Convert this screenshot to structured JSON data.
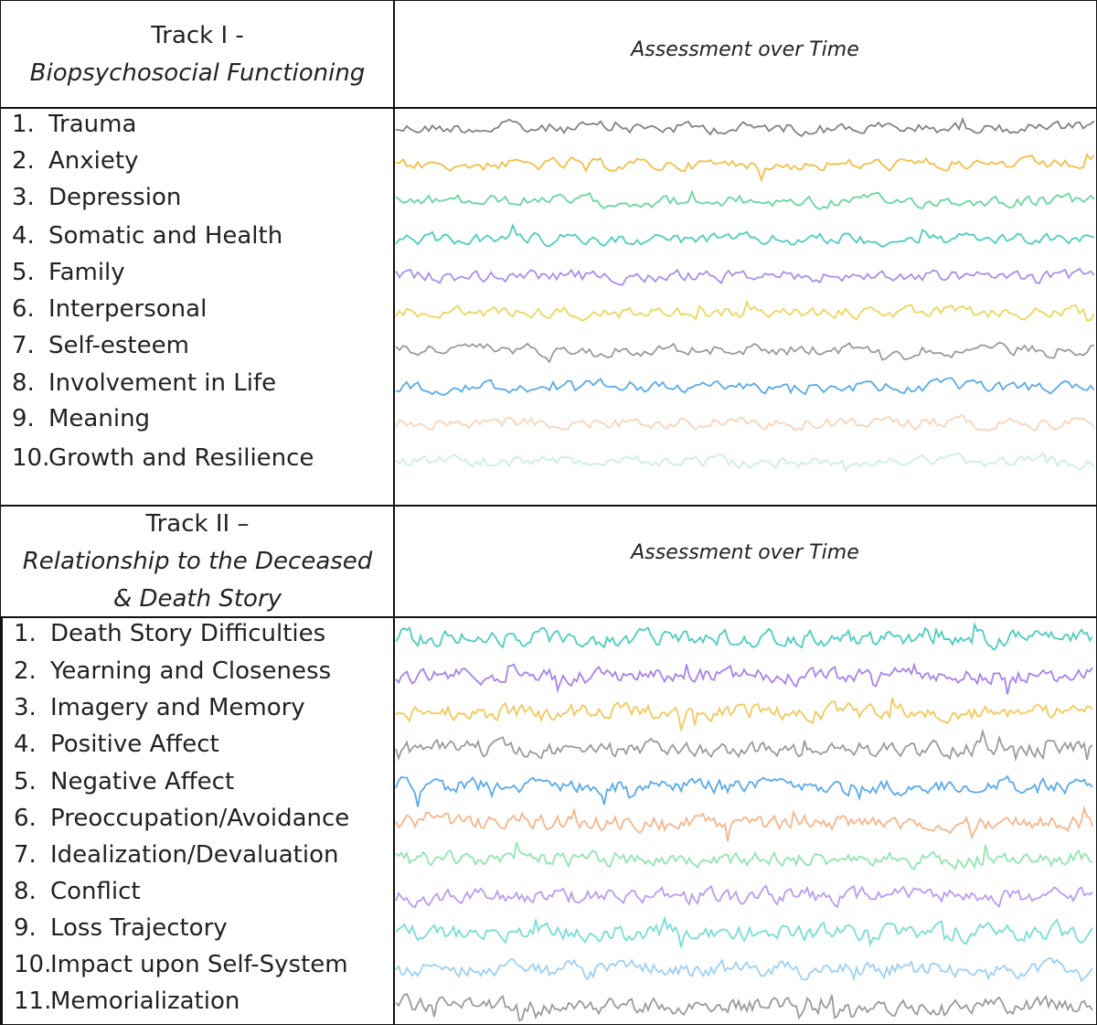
{
  "tracks": [
    {
      "title": "Track I -",
      "subtitle": "Biopsychosocial Functioning",
      "assessment_label": "Assessment over Time",
      "items": [
        {
          "num": "1.",
          "label": "Trauma",
          "color": "#6b6b75"
        },
        {
          "num": "2.",
          "label": "Anxiety",
          "color": "#f0b429"
        },
        {
          "num": "3.",
          "label": "Depression",
          "color": "#4fd08c"
        },
        {
          "num": "4.",
          "label": "Somatic and Health",
          "color": "#2ec4b6"
        },
        {
          "num": "5.",
          "label": "Family",
          "color": "#9b7be8"
        },
        {
          "num": "6.",
          "label": "Interpersonal",
          "color": "#e8d040"
        },
        {
          "num": "7.",
          "label": "Self-esteem",
          "color": "#8a8a8a"
        },
        {
          "num": "8.",
          "label": "Involvement in Life",
          "color": "#3d9be9"
        },
        {
          "num": "9.",
          "label": "Meaning",
          "color": "#f5b88a"
        },
        {
          "num": "10.",
          "label": "Growth and Resilience",
          "color": "#a8e6c0"
        }
      ]
    },
    {
      "title": "Track II –",
      "subtitle": "Relationship to the Deceased & Death Story",
      "assessment_label": "Assessment over Time",
      "items": [
        {
          "num": "1.",
          "label": "Death Story Difficulties",
          "color": "#2ec4b6"
        },
        {
          "num": "2.",
          "label": "Yearning and Closeness",
          "color": "#9b6be8"
        },
        {
          "num": "3.",
          "label": "Imagery and Memory",
          "color": "#f0c040"
        },
        {
          "num": "4.",
          "label": "Positive Affect",
          "color": "#8a8a8a"
        },
        {
          "num": "5.",
          "label": "Negative Affect",
          "color": "#3d9be9"
        },
        {
          "num": "6.",
          "label": "Preoccupation/Avoidance",
          "color": "#f5a878"
        },
        {
          "num": "7.",
          "label": "Idealization/Devaluation",
          "color": "#7fe0a0"
        },
        {
          "num": "8.",
          "label": "Conflict",
          "color": "#b08af0"
        },
        {
          "num": "9.",
          "label": "Loss Trajectory",
          "color": "#5fd8d0"
        },
        {
          "num": "10.",
          "label": "Impact upon Self-System",
          "color": "#8cc8f5"
        },
        {
          "num": "11.",
          "label": "Memorialization",
          "color": "#8a8a8a"
        }
      ]
    }
  ]
}
